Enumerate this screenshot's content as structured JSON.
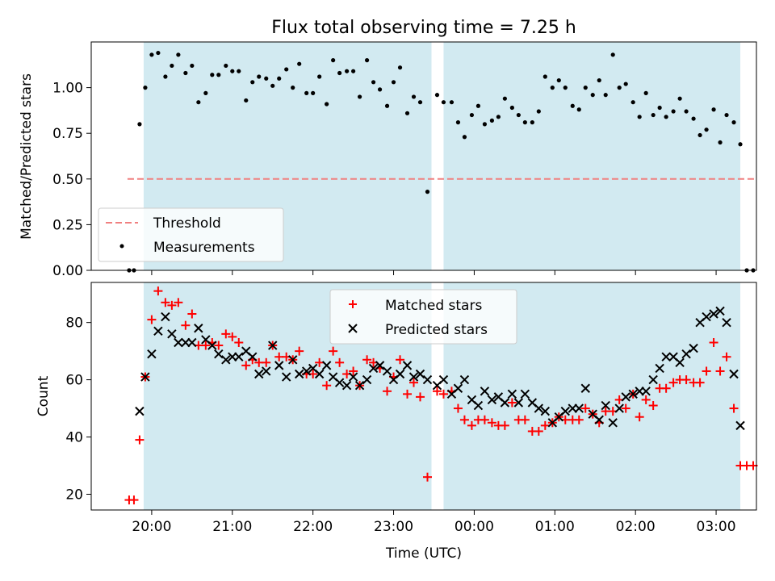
{
  "chart_data": {
    "title": "Flux total observing time = 7.25 h",
    "xlabel": "Time (UTC)",
    "x_unit": "hours (UTC); values past 24 continue into the next day",
    "xlim": [
      19.25,
      27.5
    ],
    "xticks": [
      {
        "value": 20,
        "label": "20:00"
      },
      {
        "value": 21,
        "label": "21:00"
      },
      {
        "value": 22,
        "label": "22:00"
      },
      {
        "value": 23,
        "label": "23:00"
      },
      {
        "value": 24,
        "label": "00:00"
      },
      {
        "value": 25,
        "label": "01:00"
      },
      {
        "value": 26,
        "label": "02:00"
      },
      {
        "value": 27,
        "label": "03:00"
      }
    ],
    "shaded_intervals": [
      [
        19.9,
        23.47
      ],
      [
        23.62,
        27.3
      ]
    ],
    "shade_color": "#add8e6",
    "panels": [
      {
        "type": "scatter",
        "ylabel": "Matched/Predicted stars",
        "ylim": [
          0,
          1.25
        ],
        "yticks": [
          "0.00",
          "0.25",
          "0.50",
          "0.75",
          "1.00"
        ],
        "threshold": {
          "name": "Threshold",
          "value": 0.5,
          "x_range": [
            19.7,
            27.48
          ],
          "color": "#f08080"
        },
        "legend": {
          "placement": "lower-left",
          "entries": [
            "Threshold",
            "Measurements"
          ]
        },
        "series": [
          {
            "name": "Measurements",
            "color": "#000000",
            "x": [
              19.72,
              19.78,
              19.85,
              19.92,
              20.0,
              20.08,
              20.17,
              20.25,
              20.33,
              20.42,
              20.5,
              20.58,
              20.67,
              20.75,
              20.83,
              20.92,
              21.0,
              21.08,
              21.17,
              21.25,
              21.33,
              21.42,
              21.5,
              21.58,
              21.67,
              21.75,
              21.83,
              21.92,
              22.0,
              22.08,
              22.17,
              22.25,
              22.33,
              22.42,
              22.5,
              22.58,
              22.67,
              22.75,
              22.83,
              22.92,
              23.0,
              23.08,
              23.17,
              23.25,
              23.33,
              23.42,
              23.54,
              23.62,
              23.72,
              23.8,
              23.88,
              23.97,
              24.05,
              24.13,
              24.22,
              24.3,
              24.38,
              24.47,
              24.55,
              24.63,
              24.72,
              24.8,
              24.88,
              24.97,
              25.05,
              25.13,
              25.22,
              25.3,
              25.38,
              25.47,
              25.55,
              25.63,
              25.72,
              25.8,
              25.88,
              25.97,
              26.05,
              26.13,
              26.22,
              26.3,
              26.38,
              26.47,
              26.55,
              26.63,
              26.72,
              26.8,
              26.88,
              26.97,
              27.05,
              27.13,
              27.22,
              27.3,
              27.38,
              27.46
            ],
            "y": [
              0.0,
              0.0,
              0.8,
              1.0,
              1.18,
              1.19,
              1.06,
              1.12,
              1.18,
              1.08,
              1.12,
              0.92,
              0.97,
              1.07,
              1.07,
              1.12,
              1.09,
              1.09,
              0.93,
              1.03,
              1.06,
              1.05,
              1.01,
              1.05,
              1.1,
              1.0,
              1.13,
              0.97,
              0.97,
              1.06,
              0.91,
              1.15,
              1.08,
              1.09,
              1.09,
              0.95,
              1.15,
              1.03,
              0.99,
              0.9,
              1.03,
              1.11,
              0.86,
              0.95,
              0.92,
              0.43,
              0.96,
              0.92,
              0.92,
              0.81,
              0.73,
              0.85,
              0.9,
              0.8,
              0.82,
              0.84,
              0.94,
              0.89,
              0.85,
              0.81,
              0.81,
              0.87,
              1.06,
              1.0,
              1.04,
              1.0,
              0.9,
              0.88,
              1.0,
              0.96,
              1.04,
              0.96,
              1.18,
              1.0,
              1.02,
              0.92,
              0.84,
              0.97,
              0.85,
              0.89,
              0.84,
              0.87,
              0.94,
              0.87,
              0.83,
              0.74,
              0.77,
              0.88,
              0.7,
              0.85,
              0.81,
              0.69,
              0.0,
              0.0
            ]
          }
        ]
      },
      {
        "type": "scatter",
        "ylabel": "Count",
        "ylim": [
          14.5,
          94
        ],
        "yticks": [
          "20",
          "40",
          "60",
          "80"
        ],
        "legend": {
          "placement": "upper-center",
          "entries": [
            "Matched stars",
            "Predicted stars"
          ]
        },
        "series": [
          {
            "name": "Matched stars",
            "marker": "plus",
            "color": "#ff0000",
            "x": [
              19.72,
              19.78,
              19.85,
              19.92,
              20.0,
              20.08,
              20.17,
              20.25,
              20.33,
              20.42,
              20.5,
              20.58,
              20.67,
              20.75,
              20.83,
              20.92,
              21.0,
              21.08,
              21.17,
              21.25,
              21.33,
              21.42,
              21.5,
              21.58,
              21.67,
              21.75,
              21.83,
              21.92,
              22.0,
              22.08,
              22.17,
              22.25,
              22.33,
              22.42,
              22.5,
              22.58,
              22.67,
              22.75,
              22.83,
              22.92,
              23.0,
              23.08,
              23.17,
              23.25,
              23.33,
              23.42,
              23.54,
              23.62,
              23.72,
              23.8,
              23.88,
              23.97,
              24.05,
              24.13,
              24.22,
              24.3,
              24.38,
              24.47,
              24.55,
              24.63,
              24.72,
              24.8,
              24.88,
              24.97,
              25.05,
              25.13,
              25.22,
              25.3,
              25.38,
              25.47,
              25.55,
              25.63,
              25.72,
              25.8,
              25.88,
              25.97,
              26.05,
              26.13,
              26.22,
              26.3,
              26.38,
              26.47,
              26.55,
              26.63,
              26.72,
              26.8,
              26.88,
              26.97,
              27.05,
              27.13,
              27.22,
              27.3,
              27.38,
              27.46
            ],
            "y": [
              18,
              18,
              39,
              61,
              81,
              91,
              87,
              86,
              87,
              79,
              83,
              72,
              72,
              73,
              72,
              76,
              75,
              73,
              65,
              67,
              66,
              66,
              72,
              68,
              68,
              67,
              70,
              62,
              62,
              66,
              58,
              70,
              66,
              62,
              63,
              58,
              67,
              66,
              64,
              56,
              61,
              67,
              55,
              59,
              54,
              26,
              56,
              55,
              56,
              50,
              46,
              44,
              46,
              46,
              45,
              44,
              44,
              52,
              46,
              46,
              42,
              42,
              44,
              45,
              47,
              46,
              46,
              46,
              50,
              48,
              45,
              49,
              49,
              53,
              50,
              55,
              47,
              53,
              51,
              57,
              57,
              59,
              60,
              60,
              59,
              59,
              63,
              73,
              63,
              68,
              50,
              30,
              30,
              30
            ]
          },
          {
            "name": "Predicted stars",
            "marker": "x",
            "color": "#000000",
            "x": [
              19.85,
              19.92,
              20.0,
              20.08,
              20.17,
              20.25,
              20.33,
              20.42,
              20.5,
              20.58,
              20.67,
              20.75,
              20.83,
              20.92,
              21.0,
              21.08,
              21.17,
              21.25,
              21.33,
              21.42,
              21.5,
              21.58,
              21.67,
              21.75,
              21.83,
              21.92,
              22.0,
              22.08,
              22.17,
              22.25,
              22.33,
              22.42,
              22.5,
              22.58,
              22.67,
              22.75,
              22.83,
              22.92,
              23.0,
              23.08,
              23.17,
              23.25,
              23.33,
              23.42,
              23.54,
              23.62,
              23.72,
              23.8,
              23.88,
              23.97,
              24.05,
              24.13,
              24.22,
              24.3,
              24.38,
              24.47,
              24.55,
              24.63,
              24.72,
              24.8,
              24.88,
              24.97,
              25.05,
              25.13,
              25.22,
              25.3,
              25.38,
              25.47,
              25.55,
              25.63,
              25.72,
              25.8,
              25.88,
              25.97,
              26.05,
              26.13,
              26.22,
              26.3,
              26.38,
              26.47,
              26.55,
              26.63,
              26.72,
              26.8,
              26.88,
              26.97,
              27.05,
              27.13,
              27.22,
              27.3
            ],
            "y": [
              49,
              61,
              69,
              77,
              82,
              76,
              73,
              73,
              73,
              78,
              74,
              72,
              69,
              67,
              68,
              68,
              70,
              68,
              62,
              63,
              72,
              65,
              61,
              67,
              62,
              63,
              64,
              62,
              65,
              61,
              59,
              58,
              61,
              58,
              60,
              64,
              65,
              63,
              60,
              62,
              65,
              61,
              62,
              60,
              58,
              60,
              55,
              57,
              60,
              53,
              51,
              56,
              53,
              54,
              52,
              55,
              52,
              55,
              52,
              50,
              49,
              45,
              47,
              49,
              50,
              50,
              57,
              48,
              46,
              51,
              45,
              50,
              54,
              55,
              56,
              56,
              60,
              64,
              68,
              68,
              66,
              69,
              71,
              80,
              82,
              83,
              84,
              80,
              62,
              44
            ]
          }
        ]
      }
    ]
  }
}
